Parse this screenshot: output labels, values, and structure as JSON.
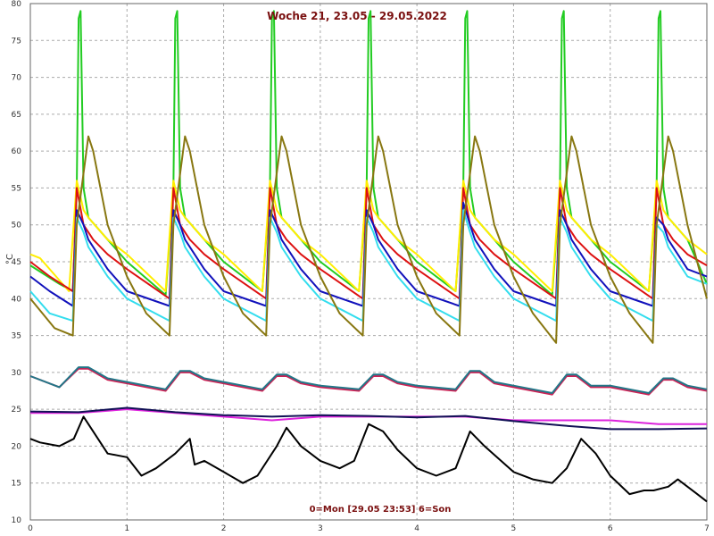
{
  "chart_data": {
    "type": "line",
    "title": "Woche 21, 23.05 - 29.05.2022",
    "footer": "0=Mon [29.05 23:53] 6=Son",
    "ylabel": "°C",
    "xlim": [
      0,
      7
    ],
    "ylim": [
      10,
      80
    ],
    "xticks": [
      0,
      1,
      2,
      3,
      4,
      5,
      6,
      7
    ],
    "yticks": [
      10,
      15,
      20,
      25,
      30,
      35,
      40,
      45,
      50,
      55,
      60,
      65,
      70,
      75,
      80
    ],
    "grid": true,
    "series": [
      {
        "color": "#22cc22",
        "x": [
          0,
          0.3,
          0.44,
          0.48,
          0.5,
          0.52,
          0.55,
          0.6,
          0.8,
          1.0,
          1.4,
          1.48,
          1.5,
          1.52,
          1.55,
          1.6,
          1.8,
          2.0,
          2.4,
          2.48,
          2.5,
          2.52,
          2.55,
          2.6,
          2.8,
          3.0,
          3.4,
          3.48,
          3.5,
          3.52,
          3.55,
          3.6,
          3.8,
          4.0,
          4.4,
          4.48,
          4.5,
          4.52,
          4.55,
          4.6,
          4.8,
          5.0,
          5.4,
          5.48,
          5.5,
          5.52,
          5.55,
          5.6,
          5.8,
          6.0,
          6.4,
          6.48,
          6.5,
          6.52,
          6.55,
          6.6,
          6.8,
          7.0
        ],
        "y": [
          44.5,
          42,
          41,
          55,
          78,
          79,
          55,
          51,
          48,
          45,
          40.5,
          55,
          78,
          79,
          55,
          51,
          48,
          45,
          41,
          55,
          78,
          79,
          55,
          51,
          48,
          45,
          41,
          55,
          78,
          79,
          55,
          51,
          48,
          45,
          41,
          55,
          78,
          79,
          55,
          51,
          48,
          45,
          40.5,
          55,
          78,
          79,
          55,
          51,
          48,
          45,
          41,
          55,
          78,
          79,
          55,
          51,
          48,
          42
        ]
      },
      {
        "color": "#ffee00",
        "x": [
          0,
          0.1,
          0.4,
          0.48,
          0.55,
          0.6,
          0.8,
          1.0,
          1.4,
          1.48,
          1.55,
          1.6,
          1.8,
          2.0,
          2.4,
          2.48,
          2.55,
          2.6,
          2.8,
          3.0,
          3.4,
          3.48,
          3.55,
          3.6,
          3.8,
          4.0,
          4.4,
          4.48,
          4.55,
          4.6,
          4.8,
          5.0,
          5.4,
          5.48,
          5.55,
          5.6,
          5.8,
          6.0,
          6.4,
          6.48,
          6.55,
          6.6,
          6.8,
          7.0
        ],
        "y": [
          46,
          45.5,
          41,
          56,
          52,
          51,
          48,
          46,
          41,
          56,
          52,
          51,
          48,
          46,
          41,
          56,
          52,
          51,
          48,
          46,
          41,
          56,
          52,
          51,
          48,
          46,
          41,
          56,
          52,
          51,
          48,
          46,
          41,
          56,
          52,
          51,
          48,
          46,
          41,
          56,
          52,
          51,
          48,
          46
        ]
      },
      {
        "color": "#dd1111",
        "x": [
          0,
          0.2,
          0.44,
          0.48,
          0.55,
          0.65,
          0.8,
          1.0,
          1.44,
          1.48,
          1.55,
          1.65,
          1.8,
          2.0,
          2.44,
          2.48,
          2.55,
          2.65,
          2.8,
          3.0,
          3.44,
          3.48,
          3.55,
          3.65,
          3.8,
          4.0,
          4.44,
          4.48,
          4.55,
          4.65,
          4.8,
          5.0,
          5.44,
          5.48,
          5.55,
          5.65,
          5.8,
          6.0,
          6.44,
          6.48,
          6.55,
          6.65,
          6.8,
          7.0
        ],
        "y": [
          45,
          43,
          41,
          55,
          50,
          48,
          46,
          44,
          40,
          55,
          50,
          48,
          46,
          44,
          40,
          55,
          50,
          48,
          46,
          44,
          40,
          55,
          50,
          48,
          46,
          44,
          40,
          55,
          50,
          48,
          46,
          44,
          40,
          55,
          50,
          48,
          46,
          44,
          40,
          55,
          50,
          48,
          46,
          44.5
        ]
      },
      {
        "color": "#1111bb",
        "x": [
          0,
          0.2,
          0.44,
          0.48,
          0.55,
          0.6,
          0.8,
          1.0,
          1.44,
          1.48,
          1.55,
          1.6,
          1.8,
          2.0,
          2.44,
          2.48,
          2.55,
          2.6,
          2.8,
          3.0,
          3.44,
          3.48,
          3.55,
          3.6,
          3.8,
          4.0,
          4.44,
          4.48,
          4.55,
          4.6,
          4.8,
          5.0,
          5.44,
          5.48,
          5.55,
          5.6,
          5.8,
          6.0,
          6.44,
          6.48,
          6.55,
          6.6,
          6.8,
          7.0
        ],
        "y": [
          43,
          41,
          39,
          52,
          50,
          48,
          44,
          41,
          39,
          52,
          50,
          48,
          44,
          41,
          39,
          52,
          50,
          48,
          44,
          41,
          39,
          52,
          50,
          48,
          44,
          41,
          39,
          53,
          50,
          48,
          44,
          41,
          39,
          52,
          50,
          48,
          44,
          41,
          39,
          51,
          50,
          48,
          44,
          43
        ]
      },
      {
        "color": "#33ddee",
        "x": [
          0,
          0.2,
          0.44,
          0.48,
          0.55,
          0.6,
          0.8,
          1.0,
          1.44,
          1.48,
          1.55,
          1.6,
          1.8,
          2.0,
          2.44,
          2.48,
          2.55,
          2.6,
          2.8,
          3.0,
          3.44,
          3.48,
          3.55,
          3.6,
          3.8,
          4.0,
          4.44,
          4.48,
          4.55,
          4.6,
          4.8,
          5.0,
          5.44,
          5.48,
          5.55,
          5.6,
          5.8,
          6.0,
          6.44,
          6.48,
          6.55,
          6.6,
          6.8,
          7.0
        ],
        "y": [
          41,
          38,
          37,
          51,
          49,
          47,
          43,
          40,
          37,
          51,
          49,
          47,
          43,
          40,
          37,
          51,
          49,
          47,
          43,
          40,
          37,
          51,
          49,
          47,
          43,
          40,
          37,
          52,
          49,
          47,
          43,
          40,
          37,
          51,
          49,
          47,
          43,
          40,
          37,
          50,
          49,
          47,
          43,
          42
        ]
      },
      {
        "color": "#887711",
        "x": [
          0,
          0.25,
          0.44,
          0.48,
          0.6,
          0.65,
          0.8,
          1.0,
          1.2,
          1.44,
          1.48,
          1.6,
          1.65,
          1.8,
          2.0,
          2.2,
          2.44,
          2.48,
          2.6,
          2.65,
          2.8,
          3.0,
          3.2,
          3.44,
          3.48,
          3.6,
          3.65,
          3.8,
          4.0,
          4.2,
          4.44,
          4.48,
          4.6,
          4.65,
          4.8,
          5.0,
          5.2,
          5.44,
          5.48,
          5.6,
          5.65,
          5.8,
          6.0,
          6.2,
          6.44,
          6.48,
          6.6,
          6.65,
          6.8,
          7.0
        ],
        "y": [
          40,
          36,
          35,
          50,
          62,
          60,
          50,
          43,
          38,
          35,
          50,
          62,
          60,
          50,
          43,
          38,
          35,
          50,
          62,
          60,
          50,
          43,
          38,
          35,
          50,
          62,
          60,
          50,
          43,
          38,
          35,
          50,
          62,
          60,
          50,
          43,
          38,
          34,
          50,
          62,
          60,
          50,
          43,
          38,
          34,
          50,
          62,
          60,
          50,
          40
        ]
      },
      {
        "color": "#cc2255",
        "x": [
          0,
          0.3,
          0.5,
          0.6,
          0.8,
          1.0,
          1.4,
          1.55,
          1.65,
          1.8,
          2.0,
          2.4,
          2.55,
          2.65,
          2.8,
          3.0,
          3.4,
          3.55,
          3.65,
          3.8,
          4.0,
          4.4,
          4.55,
          4.65,
          4.8,
          5.0,
          5.4,
          5.55,
          5.65,
          5.8,
          6.0,
          6.4,
          6.55,
          6.65,
          6.8,
          7.0
        ],
        "y": [
          29.5,
          28,
          30.5,
          30.5,
          29,
          28.5,
          27.5,
          30,
          30,
          29,
          28.5,
          27.5,
          29.5,
          29.5,
          28.5,
          28,
          27.5,
          29.5,
          29.5,
          28.5,
          28,
          27.5,
          30,
          30,
          28.5,
          28,
          27,
          29.5,
          29.5,
          28,
          28,
          27,
          29,
          29,
          28,
          27.5
        ]
      },
      {
        "color": "#227788",
        "x": [
          0,
          0.3,
          0.5,
          0.6,
          0.8,
          1.0,
          1.4,
          1.55,
          1.65,
          1.8,
          2.0,
          2.4,
          2.55,
          2.65,
          2.8,
          3.0,
          3.4,
          3.55,
          3.65,
          3.8,
          4.0,
          4.4,
          4.55,
          4.65,
          4.8,
          5.0,
          5.4,
          5.55,
          5.65,
          5.8,
          6.0,
          6.4,
          6.55,
          6.65,
          6.8,
          7.0
        ],
        "y": [
          29.5,
          28,
          30.7,
          30.7,
          29.2,
          28.7,
          27.7,
          30.2,
          30.2,
          29.2,
          28.7,
          27.7,
          29.7,
          29.7,
          28.7,
          28.2,
          27.7,
          29.7,
          29.7,
          28.7,
          28.2,
          27.7,
          30.2,
          30.2,
          28.7,
          28.2,
          27.2,
          29.7,
          29.7,
          28.2,
          28.2,
          27.2,
          29.2,
          29.2,
          28.2,
          27.7
        ]
      },
      {
        "color": "#dd22dd",
        "x": [
          0,
          0.5,
          1.0,
          1.5,
          2.0,
          2.5,
          3.0,
          3.5,
          4.0,
          4.5,
          5.0,
          5.5,
          6.0,
          6.5,
          7.0
        ],
        "y": [
          24.5,
          24.5,
          25,
          24.5,
          24,
          23.5,
          24,
          24,
          24,
          24,
          23.5,
          23.5,
          23.5,
          23,
          23
        ]
      },
      {
        "color": "#111155",
        "x": [
          0,
          0.5,
          1.0,
          1.5,
          2.0,
          2.5,
          3.0,
          3.5,
          4.0,
          4.5,
          5.0,
          5.5,
          6.0,
          6.5,
          7.0
        ],
        "y": [
          24.7,
          24.6,
          25.2,
          24.6,
          24.2,
          24.0,
          24.2,
          24.1,
          23.9,
          24.1,
          23.4,
          22.8,
          22.3,
          22.3,
          22.4
        ]
      },
      {
        "color": "#000000",
        "x": [
          0,
          0.1,
          0.3,
          0.45,
          0.55,
          0.7,
          0.8,
          1.0,
          1.15,
          1.3,
          1.5,
          1.65,
          1.7,
          1.8,
          2.0,
          2.2,
          2.35,
          2.55,
          2.65,
          2.8,
          3.0,
          3.2,
          3.35,
          3.5,
          3.65,
          3.8,
          4.0,
          4.2,
          4.4,
          4.55,
          4.7,
          5.0,
          5.2,
          5.4,
          5.55,
          5.7,
          5.85,
          6.0,
          6.2,
          6.35,
          6.45,
          6.6,
          6.7,
          6.9,
          7.0
        ],
        "y": [
          21,
          20.5,
          20,
          21,
          24,
          21,
          19,
          18.5,
          16,
          17,
          19,
          21,
          17.5,
          18,
          16.5,
          15,
          16,
          20,
          22.5,
          20,
          18,
          17,
          18,
          23,
          22,
          19.5,
          17,
          16,
          17,
          22,
          20,
          16.5,
          15.5,
          15,
          17,
          21,
          19,
          16,
          13.5,
          14,
          14,
          14.5,
          15.5,
          13.5,
          12.5
        ]
      }
    ]
  }
}
